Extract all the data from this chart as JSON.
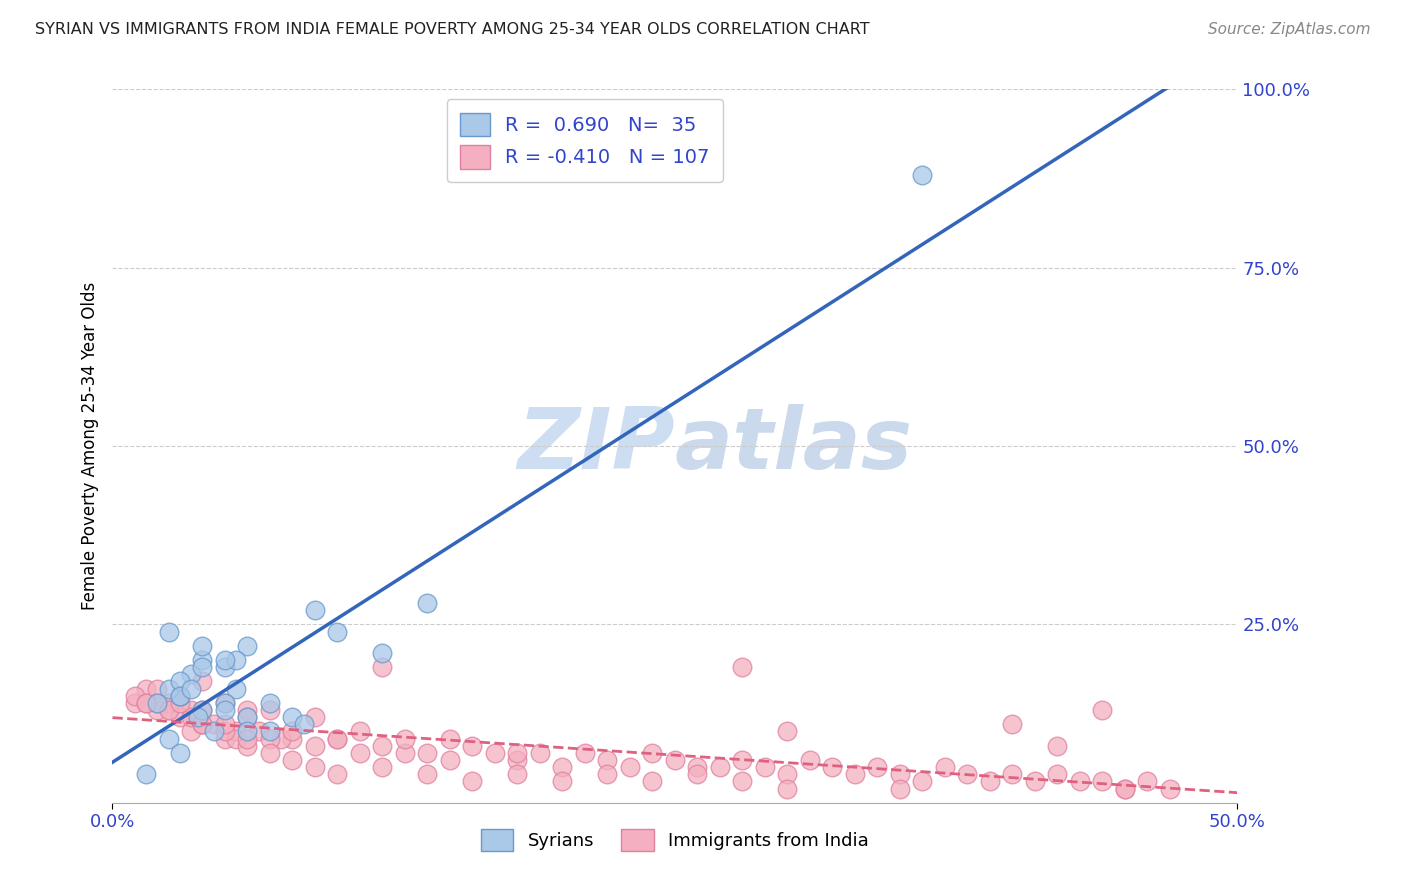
{
  "title": "SYRIAN VS IMMIGRANTS FROM INDIA FEMALE POVERTY AMONG 25-34 YEAR OLDS CORRELATION CHART",
  "source": "Source: ZipAtlas.com",
  "ylabel_label": "Female Poverty Among 25-34 Year Olds",
  "legend_label1": "Syrians",
  "legend_label2": "Immigrants from India",
  "R1": 0.69,
  "N1": 35,
  "R2": -0.41,
  "N2": 107,
  "blue_color": "#aac8e8",
  "blue_edge_color": "#6699cc",
  "blue_line_color": "#3366bb",
  "pink_color": "#f4b0c0",
  "pink_edge_color": "#e080a0",
  "pink_line_color": "#e06080",
  "watermark_color": "#dde8f5",
  "grid_color": "#cccccc",
  "title_color": "#222222",
  "source_color": "#888888",
  "tick_color": "#3344cc",
  "xlim": [
    0.0,
    0.5
  ],
  "ylim": [
    0.0,
    1.0
  ],
  "blue_scatter_x": [
    0.035,
    0.04,
    0.045,
    0.03,
    0.025,
    0.05,
    0.04,
    0.038,
    0.06,
    0.055,
    0.02,
    0.03,
    0.04,
    0.05,
    0.025,
    0.08,
    0.09,
    0.1,
    0.085,
    0.03,
    0.055,
    0.07,
    0.12,
    0.14,
    0.015,
    0.36,
    0.06,
    0.05,
    0.05,
    0.03,
    0.06,
    0.07,
    0.04,
    0.035,
    0.025
  ],
  "blue_scatter_y": [
    0.18,
    0.2,
    0.1,
    0.15,
    0.16,
    0.19,
    0.13,
    0.12,
    0.22,
    0.2,
    0.14,
    0.17,
    0.19,
    0.2,
    0.09,
    0.12,
    0.27,
    0.24,
    0.11,
    0.15,
    0.16,
    0.1,
    0.21,
    0.28,
    0.04,
    0.88,
    0.12,
    0.14,
    0.13,
    0.07,
    0.1,
    0.14,
    0.22,
    0.16,
    0.24
  ],
  "pink_scatter_x": [
    0.01,
    0.015,
    0.02,
    0.025,
    0.01,
    0.02,
    0.03,
    0.025,
    0.035,
    0.02,
    0.015,
    0.03,
    0.04,
    0.035,
    0.05,
    0.04,
    0.06,
    0.055,
    0.065,
    0.08,
    0.075,
    0.09,
    0.1,
    0.11,
    0.12,
    0.13,
    0.14,
    0.15,
    0.16,
    0.17,
    0.18,
    0.19,
    0.2,
    0.21,
    0.22,
    0.23,
    0.24,
    0.25,
    0.26,
    0.27,
    0.28,
    0.29,
    0.3,
    0.31,
    0.32,
    0.33,
    0.34,
    0.35,
    0.36,
    0.37,
    0.38,
    0.39,
    0.4,
    0.41,
    0.42,
    0.43,
    0.44,
    0.45,
    0.46,
    0.47,
    0.04,
    0.05,
    0.06,
    0.07,
    0.08,
    0.09,
    0.1,
    0.11,
    0.12,
    0.015,
    0.025,
    0.035,
    0.045,
    0.055,
    0.13,
    0.15,
    0.18,
    0.28,
    0.3,
    0.4,
    0.42,
    0.44,
    0.03,
    0.04,
    0.05,
    0.06,
    0.07,
    0.03,
    0.04,
    0.05,
    0.06,
    0.07,
    0.08,
    0.09,
    0.1,
    0.12,
    0.14,
    0.16,
    0.18,
    0.2,
    0.22,
    0.24,
    0.26,
    0.28,
    0.3,
    0.35,
    0.45
  ],
  "pink_scatter_y": [
    0.14,
    0.16,
    0.16,
    0.14,
    0.15,
    0.13,
    0.15,
    0.13,
    0.13,
    0.14,
    0.14,
    0.12,
    0.11,
    0.1,
    0.09,
    0.11,
    0.13,
    0.1,
    0.1,
    0.09,
    0.09,
    0.08,
    0.09,
    0.07,
    0.08,
    0.07,
    0.07,
    0.06,
    0.08,
    0.07,
    0.06,
    0.07,
    0.05,
    0.07,
    0.06,
    0.05,
    0.07,
    0.06,
    0.05,
    0.05,
    0.06,
    0.05,
    0.04,
    0.06,
    0.05,
    0.04,
    0.05,
    0.04,
    0.03,
    0.05,
    0.04,
    0.03,
    0.04,
    0.03,
    0.04,
    0.03,
    0.03,
    0.02,
    0.03,
    0.02,
    0.17,
    0.14,
    0.12,
    0.13,
    0.1,
    0.12,
    0.09,
    0.1,
    0.19,
    0.14,
    0.13,
    0.12,
    0.11,
    0.09,
    0.09,
    0.09,
    0.07,
    0.19,
    0.1,
    0.11,
    0.08,
    0.13,
    0.14,
    0.11,
    0.1,
    0.08,
    0.09,
    0.15,
    0.13,
    0.11,
    0.09,
    0.07,
    0.06,
    0.05,
    0.04,
    0.05,
    0.04,
    0.03,
    0.04,
    0.03,
    0.04,
    0.03,
    0.04,
    0.03,
    0.02,
    0.02,
    0.02
  ]
}
